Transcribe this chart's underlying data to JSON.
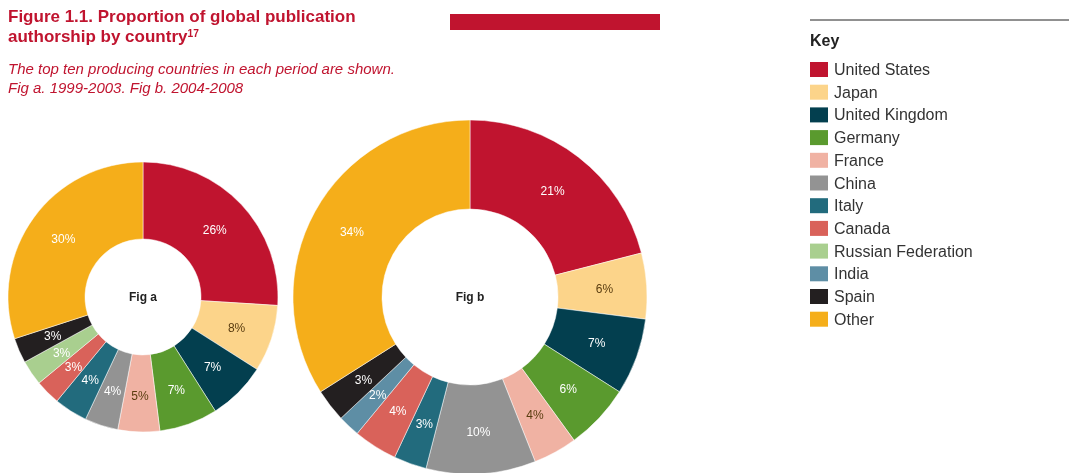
{
  "chart_data": {
    "type": "donut",
    "title": "Figure 1.1. Proportion of global publication authorship by country$^{17}$",
    "subtitle": "The top ten producing countries in each period are shown. Fig a. 1999-2003. Fig b. 2004-2008",
    "legend": "right",
    "legend_title": "Key",
    "categories": [
      "United States",
      "Japan",
      "United Kingdom",
      "Germany",
      "France",
      "China",
      "Italy",
      "Canada",
      "Russian Federation",
      "India",
      "Spain",
      "Other"
    ],
    "colors": [
      "#c0142f",
      "#fcd48a",
      "#033f4f",
      "#5a9a2e",
      "#f0b2a3",
      "#939393",
      "#226b7d",
      "#d9625a",
      "#a9cf8f",
      "#5e8ea5",
      "#231f20",
      "#f5ae1a"
    ],
    "series": [
      {
        "name": "Fig a",
        "values": [
          26,
          8,
          7,
          7,
          5,
          4,
          4,
          3,
          3,
          null,
          3,
          30
        ],
        "value_labels": [
          "26%",
          "8%",
          "7%",
          "7%",
          "5%",
          "4%",
          "4%",
          "3%",
          "3%",
          null,
          "3%",
          "30%"
        ]
      },
      {
        "name": "Fig b",
        "values": [
          21,
          6,
          7,
          6,
          4,
          10,
          3,
          4,
          null,
          2,
          3,
          34
        ],
        "value_labels": [
          "21%",
          "6%",
          "7%",
          "6%",
          "4%",
          "10%",
          "3%",
          "4%",
          null,
          "2%",
          "3%",
          "34%"
        ]
      }
    ]
  }
}
